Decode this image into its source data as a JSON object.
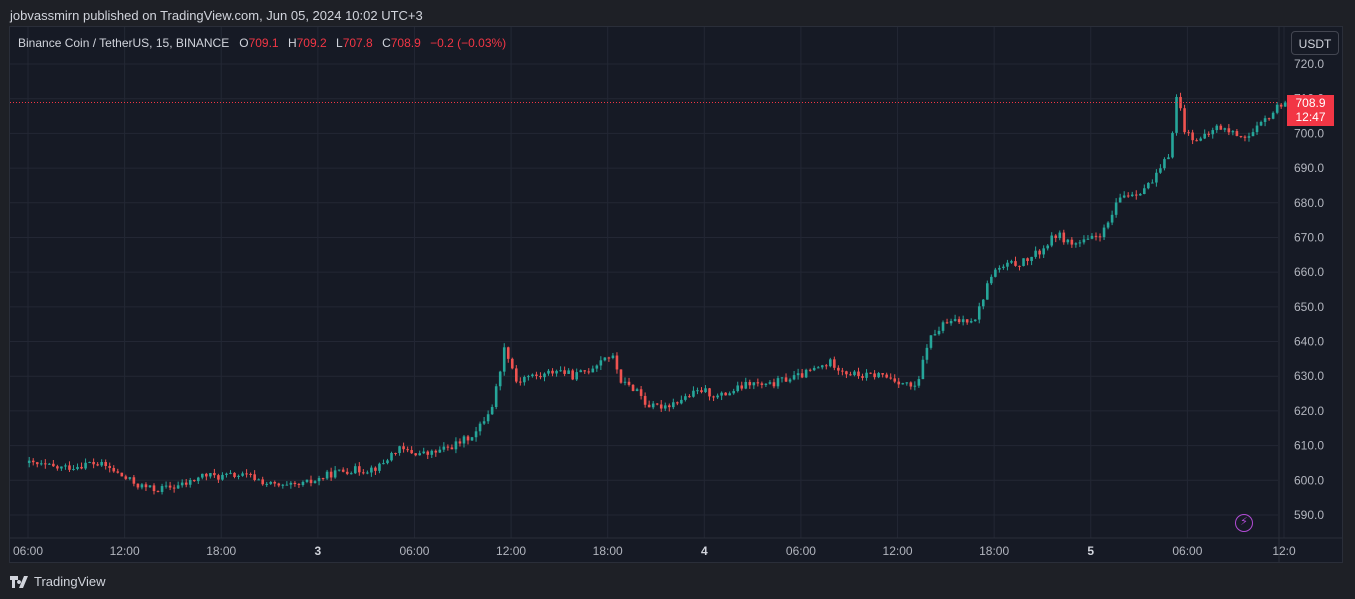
{
  "header": {
    "published_by": "jobvassmirn published on TradingView.com, Jun 05, 2024 10:02 UTC+3"
  },
  "legend": {
    "symbol": "Binance Coin / TetherUS, 15, BINANCE",
    "o_label": "O",
    "o_value": "709.1",
    "h_label": "H",
    "h_value": "709.2",
    "l_label": "L",
    "l_value": "707.8",
    "c_label": "C",
    "c_value": "708.9",
    "change": "−0.2 (−0.03%)"
  },
  "currency_button": "USDT",
  "last_price": {
    "value": "708.9",
    "countdown": "12:47"
  },
  "footer": {
    "brand": "TradingView"
  },
  "colors": {
    "up": "#26a69a",
    "down": "#ef5350",
    "grid": "#232734",
    "background": "#161a25",
    "axis_text": "#b2b5be",
    "price_line": "#f23645"
  },
  "chart_data": {
    "type": "candlestick",
    "interval": "15",
    "y_axis": {
      "range": [
        584,
        722
      ],
      "ticks": [
        "720.0",
        "710.0",
        "700.0",
        "690.0",
        "680.0",
        "670.0",
        "660.0",
        "650.0",
        "640.0",
        "630.0",
        "620.0",
        "610.0",
        "600.0",
        "590.0"
      ],
      "position": "right"
    },
    "x_axis": {
      "ticks": [
        {
          "label": "06:00",
          "hour": 6
        },
        {
          "label": "12:00",
          "hour": 12
        },
        {
          "label": "18:00",
          "hour": 18
        },
        {
          "label": "3",
          "hour": 24
        },
        {
          "label": "06:00",
          "hour": 30
        },
        {
          "label": "12:00",
          "hour": 36
        },
        {
          "label": "18:00",
          "hour": 42
        },
        {
          "label": "4",
          "hour": 48
        },
        {
          "label": "06:00",
          "hour": 54
        },
        {
          "label": "12:00",
          "hour": 60
        },
        {
          "label": "18:00",
          "hour": 66
        },
        {
          "label": "5",
          "hour": 72
        },
        {
          "label": "06:00",
          "hour": 78
        },
        {
          "label": "12:0",
          "hour": 84
        }
      ],
      "range_hours": [
        5.95,
        84.55
      ]
    },
    "grid": true,
    "last_close": 708.9,
    "close_path": [
      [
        5.95,
        605
      ],
      [
        8,
        603.5
      ],
      [
        9,
        604
      ],
      [
        10,
        605
      ],
      [
        11,
        604
      ],
      [
        12,
        601
      ],
      [
        13,
        598.5
      ],
      [
        14,
        597.3
      ],
      [
        15,
        598
      ],
      [
        16,
        599
      ],
      [
        17,
        601.5
      ],
      [
        18,
        601
      ],
      [
        19,
        601.5
      ],
      [
        20,
        601
      ],
      [
        21,
        599
      ],
      [
        22,
        598
      ],
      [
        23,
        598.5
      ],
      [
        24,
        600
      ],
      [
        25,
        602
      ],
      [
        26,
        603
      ],
      [
        27,
        603
      ],
      [
        28,
        604
      ],
      [
        29,
        609
      ],
      [
        30,
        608
      ],
      [
        31,
        607.5
      ],
      [
        32,
        609
      ],
      [
        33,
        611
      ],
      [
        34,
        614
      ],
      [
        35,
        622
      ],
      [
        35.75,
        639
      ],
      [
        36.5,
        628
      ],
      [
        37,
        630
      ],
      [
        38,
        630
      ],
      [
        39,
        632
      ],
      [
        40,
        630
      ],
      [
        41,
        632
      ],
      [
        42,
        636
      ],
      [
        42.5,
        635
      ],
      [
        43,
        628
      ],
      [
        44,
        626
      ],
      [
        44.5,
        622
      ],
      [
        45,
        621
      ],
      [
        46,
        622
      ],
      [
        47,
        624
      ],
      [
        48,
        626
      ],
      [
        49,
        624
      ],
      [
        50,
        626
      ],
      [
        51,
        628
      ],
      [
        52,
        627
      ],
      [
        53,
        629
      ],
      [
        54,
        630
      ],
      [
        55,
        632
      ],
      [
        56,
        634
      ],
      [
        57,
        631
      ],
      [
        58,
        630
      ],
      [
        59,
        630.5
      ],
      [
        60,
        629
      ],
      [
        61,
        627
      ],
      [
        61.3,
        626
      ],
      [
        62,
        640
      ],
      [
        63,
        645
      ],
      [
        64,
        646
      ],
      [
        65,
        647
      ],
      [
        66,
        660
      ],
      [
        67,
        662
      ],
      [
        68,
        663
      ],
      [
        69,
        666
      ],
      [
        70,
        671
      ],
      [
        71,
        668
      ],
      [
        72,
        669
      ],
      [
        73,
        672
      ],
      [
        74,
        682
      ],
      [
        75,
        683
      ],
      [
        76,
        686
      ],
      [
        77,
        694
      ],
      [
        77.5,
        712
      ],
      [
        78,
        700
      ],
      [
        79,
        698
      ],
      [
        80,
        702
      ],
      [
        81,
        700
      ],
      [
        82,
        699
      ],
      [
        83,
        704
      ],
      [
        84,
        708.9
      ]
    ]
  }
}
